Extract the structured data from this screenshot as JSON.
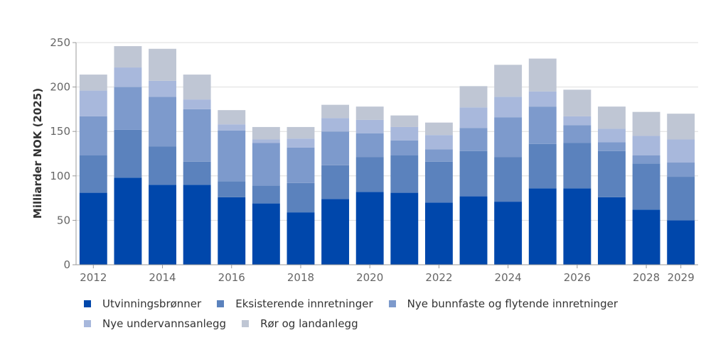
{
  "chart_data": {
    "type": "bar",
    "stacked": true,
    "categories": [
      "2012",
      "2013",
      "2014",
      "2015",
      "2016",
      "2017",
      "2018",
      "2019",
      "2020",
      "2021",
      "2022",
      "2023",
      "2024",
      "2025",
      "2026",
      "2027",
      "2028",
      "2029"
    ],
    "x_tick_labels": [
      "2012",
      "2014",
      "2016",
      "2018",
      "2020",
      "2022",
      "2024",
      "2026",
      "2028",
      "2029"
    ],
    "ylabel": "Milliarder NOK (2025)",
    "xlabel": "",
    "ylim": [
      0,
      250
    ],
    "yticks": [
      0,
      50,
      100,
      150,
      200,
      250
    ],
    "grid": true,
    "legend_position": "bottom-left",
    "series": [
      {
        "name": "Utvinningsbrønner",
        "color": "#0047ab",
        "values": [
          81,
          98,
          90,
          90,
          76,
          69,
          59,
          74,
          82,
          81,
          70,
          77,
          71,
          86,
          86,
          76,
          62,
          50
        ]
      },
      {
        "name": "Eksisterende innretninger",
        "color": "#5b82bd",
        "values": [
          42,
          54,
          43,
          26,
          18,
          20,
          33,
          38,
          39,
          42,
          46,
          51,
          50,
          50,
          51,
          52,
          52,
          49
        ]
      },
      {
        "name": "Nye bunnfaste og flytende innretninger",
        "color": "#7d9acc",
        "values": [
          44,
          48,
          56,
          59,
          57,
          48,
          40,
          38,
          27,
          17,
          14,
          26,
          45,
          42,
          20,
          10,
          9,
          16
        ]
      },
      {
        "name": "Nye undervannsanlegg",
        "color": "#a8b8dc",
        "values": [
          29,
          22,
          18,
          11,
          7,
          4,
          10,
          15,
          15,
          15,
          16,
          23,
          23,
          17,
          10,
          15,
          22,
          26
        ]
      },
      {
        "name": "Rør og landanlegg",
        "color": "#bfc6d4",
        "values": [
          18,
          24,
          36,
          28,
          16,
          14,
          13,
          15,
          15,
          13,
          14,
          24,
          36,
          37,
          30,
          25,
          27,
          29
        ]
      }
    ]
  }
}
